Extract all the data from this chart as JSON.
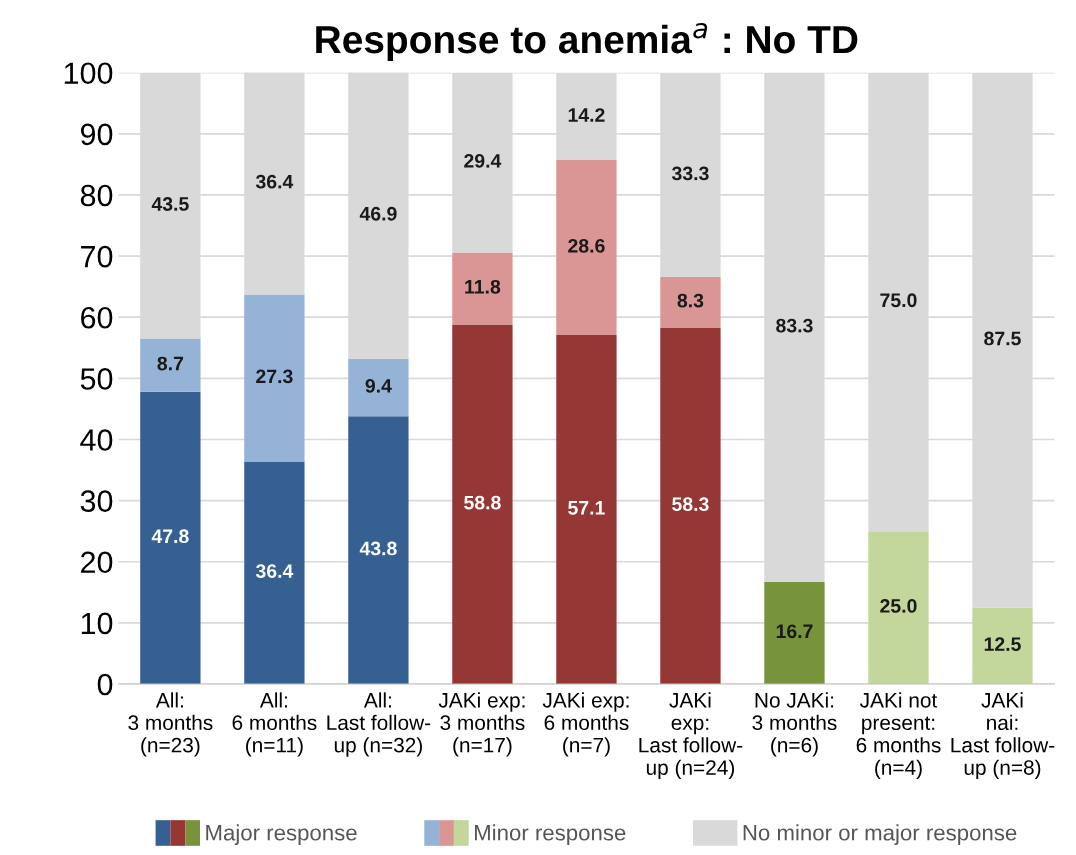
{
  "chart_data": {
    "type": "bar",
    "title": "Response to anemia$^{a}$ : No TD",
    "stacked": true,
    "categories": [
      "All:\n3 months\n(n=23)",
      "All:\n6 months\n(n=11)",
      "All:\nLast follow-\nup (n=32)",
      "JAKi exp:\n3 months\n(n=17)",
      "JAKi exp:\n6 months\n(n=7)",
      "JAKi\nexp:\nLast follow-\nup (n=24)",
      "No JAKi:\n3 months\n(n=6)",
      "JAKi not\npresent:\n6 months\n(n=4)",
      "JAKi\nnai:\nLast follow-\nup (n=8)"
    ],
    "series": [
      {
        "name": "Major response",
        "colors": [
          "#376092",
          "#376092",
          "#376092",
          "#953735",
          "#953735",
          "#953735",
          "#77933c",
          "#77933c",
          "#77933c"
        ],
        "values": [
          47.8,
          36.4,
          43.8,
          58.8,
          57.1,
          58.3,
          16.7,
          null,
          null
        ],
        "value_labels": [
          "47.8",
          "36.4",
          "43.8",
          "58.8",
          "57.1",
          "58.3",
          "16.7",
          null,
          null
        ]
      },
      {
        "name": "Minor response",
        "colors": [
          "#95b3d7",
          "#95b3d7",
          "#95b3d7",
          "#d99694",
          "#d99694",
          "#d99694",
          "#c3d69b",
          "#c3d69b",
          "#c3d69b"
        ],
        "values": [
          8.7,
          27.3,
          9.4,
          11.8,
          28.6,
          8.3,
          null,
          25.0,
          12.5
        ],
        "value_labels": [
          "8.7",
          "27.3",
          "9.4",
          "11.8",
          "28.6",
          "8.3",
          null,
          "25.0",
          "12.5"
        ]
      },
      {
        "name": "No minor or major response",
        "colors": [
          "#d9d9d9",
          "#d9d9d9",
          "#d9d9d9",
          "#d9d9d9",
          "#d9d9d9",
          "#d9d9d9",
          "#d9d9d9",
          "#d9d9d9",
          "#d9d9d9"
        ],
        "values": [
          43.5,
          36.4,
          46.9,
          29.4,
          14.2,
          33.3,
          83.3,
          75.0,
          87.5
        ],
        "value_labels": [
          "43.5",
          "36.4",
          "46.9",
          "29.4",
          "14.2",
          "33.3",
          "83.3",
          "75.0",
          "87.5"
        ]
      }
    ],
    "ylim": [
      0,
      100
    ],
    "yticks": [
      0,
      10,
      20,
      30,
      40,
      50,
      60,
      70,
      80,
      90,
      100
    ],
    "grid": "y",
    "legend": "bottom"
  }
}
